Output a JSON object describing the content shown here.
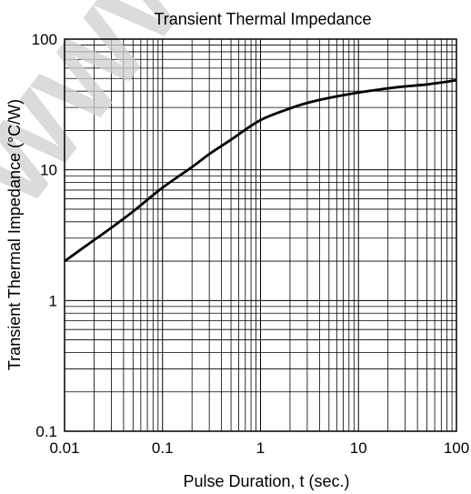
{
  "chart_data": {
    "type": "line",
    "title": "Transient Thermal Impedance",
    "xlabel": "Pulse Duration, t (sec.)",
    "ylabel": "Transient Thermal Impedance (°C/W)",
    "xscale": "log",
    "yscale": "log",
    "xlim": [
      0.01,
      100
    ],
    "ylim": [
      0.1,
      100
    ],
    "grid": "on (major and minor log grid)",
    "x_tick_labels": [
      "0.01",
      "0.1",
      "1",
      "10",
      "100"
    ],
    "y_tick_labels": [
      "0.1",
      "1",
      "10",
      "100"
    ],
    "series": [
      {
        "color": "#000000",
        "x": [
          0.01,
          0.02,
          0.03,
          0.05,
          0.1,
          0.2,
          0.3,
          0.5,
          1,
          2,
          3,
          5,
          10,
          20,
          30,
          50,
          100
        ],
        "y": [
          2.0,
          2.9,
          3.6,
          4.8,
          7.3,
          10.5,
          13.2,
          17.0,
          24.0,
          29.5,
          32.5,
          35.5,
          39.0,
          42.0,
          43.5,
          45.0,
          48.5
        ]
      }
    ]
  },
  "watermark": {
    "text": "WWW",
    "color": "#cfcfcf"
  }
}
